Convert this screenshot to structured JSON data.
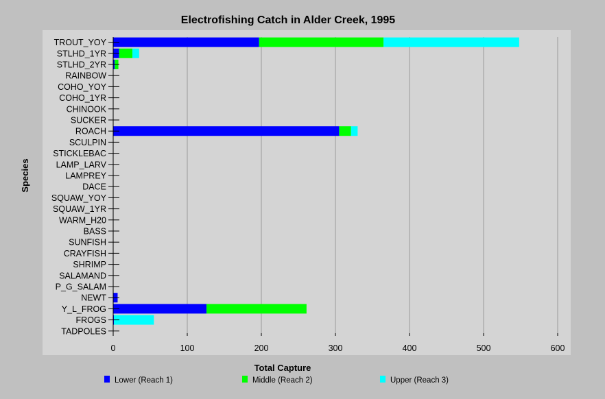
{
  "chart_data": {
    "type": "bar",
    "orientation": "horizontal",
    "stacked": true,
    "title": "Electrofishing Catch in Alder Creek, 1995",
    "xlabel": "Total Capture",
    "ylabel": "Species",
    "xlim": [
      0,
      600
    ],
    "xticks": [
      0,
      100,
      200,
      300,
      400,
      500,
      600
    ],
    "grid": "vertical",
    "legend_position": "bottom",
    "categories": [
      "TROUT_YOY",
      "STLHD_1YR",
      "STLHD_2YR",
      "RAINBOW",
      "COHO_YOY",
      "COHO_1YR",
      "CHINOOK",
      "SUCKER",
      "ROACH",
      "SCULPIN",
      "STICKLEBAC",
      "LAMP_LARV",
      "LAMPREY",
      "DACE",
      "SQUAW_YOY",
      "SQUAW_1YR",
      "WARM_H20",
      "BASS",
      "SUNFISH",
      "CRAYFISH",
      "SHRIMP",
      "SALAMAND",
      "P_G_SALAM",
      "NEWT",
      "Y_L_FROG",
      "FROGS",
      "TADPOLES"
    ],
    "series": [
      {
        "name": "Lower (Reach 1)",
        "color": "#0000ff",
        "values": [
          197,
          8,
          2,
          0,
          0,
          0,
          0,
          0,
          305,
          0,
          0,
          0,
          0,
          0,
          0,
          0,
          0,
          0,
          0,
          0,
          0,
          0,
          0,
          6,
          126,
          1,
          0
        ]
      },
      {
        "name": "Middle (Reach 2)",
        "color": "#00ff00",
        "values": [
          168,
          18,
          5,
          0,
          0,
          0,
          0,
          0,
          16,
          0,
          0,
          0,
          0,
          0,
          0,
          0,
          0,
          0,
          0,
          0,
          0,
          0,
          0,
          0,
          135,
          0,
          0
        ]
      },
      {
        "name": "Upper (Reach 3)",
        "color": "#00ffff",
        "values": [
          183,
          9,
          0,
          0,
          0,
          0,
          0,
          0,
          9,
          0,
          0,
          0,
          0,
          0,
          0,
          0,
          0,
          0,
          0,
          0,
          0,
          0,
          0,
          0,
          0,
          54,
          0
        ]
      }
    ]
  }
}
